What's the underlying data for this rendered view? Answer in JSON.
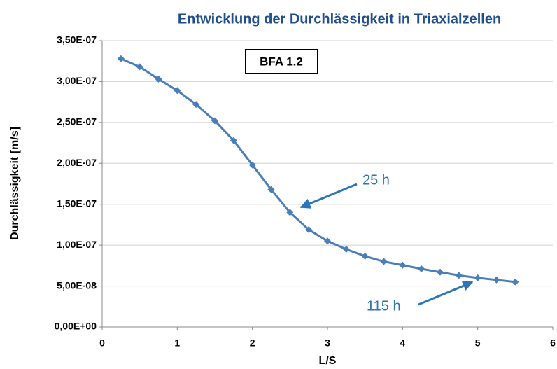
{
  "chart_data": {
    "type": "line",
    "title": "Entwicklung der Durchlässigkeit in Triaxialzellen",
    "xlabel": "L/S",
    "ylabel": "Durchlässigkeit [m/s]",
    "annotations": [
      "BFA 1.2",
      "25 h",
      "115 h"
    ],
    "x": [
      0.25,
      0.5,
      0.75,
      1.0,
      1.25,
      1.5,
      1.75,
      2.0,
      2.25,
      2.5,
      2.75,
      3.0,
      3.25,
      3.5,
      3.75,
      4.0,
      4.25,
      4.5,
      4.75,
      5.0,
      5.25,
      5.5
    ],
    "series": [
      {
        "color": "#4a7ebb",
        "values": [
          3.28e-07,
          3.18e-07,
          3.03e-07,
          2.89e-07,
          2.72e-07,
          2.52e-07,
          2.28e-07,
          1.98e-07,
          1.68e-07,
          1.4e-07,
          1.19e-07,
          1.05e-07,
          9.5e-08,
          8.65e-08,
          8e-08,
          7.55e-08,
          7.1e-08,
          6.7e-08,
          6.3e-08,
          6e-08,
          5.75e-08,
          5.5e-08
        ]
      }
    ],
    "xlim": [
      0,
      6
    ],
    "xticks": [
      0,
      1,
      2,
      3,
      4,
      5,
      6
    ],
    "ylim": [
      0,
      3.5e-07
    ],
    "yticks": [
      {
        "value": 0,
        "label": "0,00E+00"
      },
      {
        "value": 5e-08,
        "label": "5,00E-08"
      },
      {
        "value": 1e-07,
        "label": "1,00E-07"
      },
      {
        "value": 1.5e-07,
        "label": "1,50E-07"
      },
      {
        "value": 2e-07,
        "label": "2,00E-07"
      },
      {
        "value": 2.5e-07,
        "label": "2,50E-07"
      },
      {
        "value": 3e-07,
        "label": "3,00E-07"
      },
      {
        "value": 3.5e-07,
        "label": "3,50E-07"
      }
    ],
    "grid": true
  }
}
